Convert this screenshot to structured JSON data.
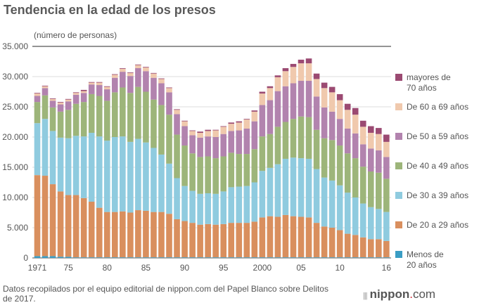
{
  "chart_data": {
    "type": "bar",
    "stacked": true,
    "title": "Tendencia en la edad de los presos",
    "ylabel": "(número de personas)",
    "ylim": [
      0,
      35000
    ],
    "yticks": [
      0,
      5000,
      10000,
      15000,
      20000,
      25000,
      30000,
      35000
    ],
    "ytick_labels": [
      "0",
      "5.000",
      "10.000",
      "15.000",
      "20.000",
      "25.000",
      "30.000",
      "35.000"
    ],
    "xtick_labels": [
      {
        "year": 1971,
        "label": "1971"
      },
      {
        "year": 1975,
        "label": "75"
      },
      {
        "year": 1980,
        "label": "80"
      },
      {
        "year": 1985,
        "label": "85"
      },
      {
        "year": 1990,
        "label": "90"
      },
      {
        "year": 1995,
        "label": "95"
      },
      {
        "year": 2000,
        "label": "2000"
      },
      {
        "year": 2005,
        "label": "05"
      },
      {
        "year": 2010,
        "label": "10"
      },
      {
        "year": 2016,
        "label": "16"
      }
    ],
    "grid": true,
    "legend_position": "right",
    "categories": [
      1971,
      1972,
      1973,
      1974,
      1975,
      1976,
      1977,
      1978,
      1979,
      1980,
      1981,
      1982,
      1983,
      1984,
      1985,
      1986,
      1987,
      1988,
      1989,
      1990,
      1991,
      1992,
      1993,
      1994,
      1995,
      1996,
      1997,
      1998,
      1999,
      2000,
      2001,
      2002,
      2003,
      2004,
      2005,
      2006,
      2007,
      2008,
      2009,
      2010,
      2011,
      2012,
      2013,
      2014,
      2015,
      2016
    ],
    "series": [
      {
        "name": "Menos de 20 años",
        "color": "#3a9dc4",
        "values": [
          300,
          300,
          300,
          200,
          200,
          100,
          100,
          100,
          100,
          100,
          100,
          100,
          100,
          100,
          100,
          100,
          100,
          100,
          100,
          100,
          100,
          100,
          100,
          100,
          100,
          100,
          100,
          100,
          100,
          100,
          100,
          100,
          100,
          100,
          100,
          100,
          100,
          100,
          100,
          100,
          100,
          100,
          100,
          100,
          100,
          100
        ]
      },
      {
        "name": "De 20 a 29 años",
        "color": "#d98f5e",
        "values": [
          13400,
          13300,
          11900,
          10800,
          10200,
          10300,
          9800,
          9200,
          8200,
          7500,
          7500,
          7600,
          7400,
          7800,
          7700,
          7500,
          7500,
          7200,
          6300,
          6000,
          5700,
          5400,
          5500,
          5400,
          5500,
          5700,
          5700,
          5700,
          5900,
          6600,
          6800,
          6700,
          7000,
          6800,
          6700,
          6600,
          5700,
          5100,
          4900,
          4500,
          3900,
          3700,
          3300,
          3000,
          3000,
          2700
        ]
      },
      {
        "name": "De 30 a 39 años",
        "color": "#8fcbdf",
        "values": [
          8600,
          9400,
          8800,
          8900,
          9400,
          9800,
          10200,
          11400,
          11800,
          11800,
          12400,
          12400,
          11700,
          11800,
          11300,
          10600,
          9500,
          8300,
          6800,
          5800,
          5300,
          5100,
          5100,
          5100,
          5400,
          5900,
          6000,
          6100,
          6500,
          7700,
          8000,
          8700,
          9300,
          9700,
          9700,
          9700,
          8900,
          8100,
          7800,
          7400,
          6800,
          6200,
          5600,
          5300,
          5000,
          4800
        ]
      },
      {
        "name": "De 40 a 49 años",
        "color": "#9db57a",
        "values": [
          3500,
          3900,
          3900,
          4300,
          4700,
          5300,
          5700,
          6400,
          6700,
          6600,
          7400,
          8100,
          8100,
          8600,
          8400,
          8000,
          8200,
          8100,
          7200,
          6700,
          6200,
          6100,
          6100,
          5900,
          5800,
          5700,
          5400,
          5300,
          5500,
          5700,
          5600,
          6200,
          6100,
          6400,
          6900,
          6900,
          6500,
          6500,
          6700,
          6600,
          6500,
          6500,
          6100,
          5900,
          6000,
          5500
        ]
      },
      {
        "name": "De 50 a 59 años",
        "color": "#b283ae",
        "values": [
          1000,
          1200,
          1100,
          1200,
          1400,
          1500,
          1500,
          1600,
          1800,
          1900,
          2400,
          2600,
          2800,
          3100,
          3400,
          3600,
          3600,
          3700,
          3400,
          3200,
          3000,
          3200,
          3300,
          3500,
          3700,
          3600,
          3900,
          4200,
          4600,
          5200,
          5600,
          5900,
          5900,
          5900,
          5900,
          6000,
          5500,
          5100,
          4700,
          4400,
          4100,
          4100,
          3700,
          3800,
          3700,
          3600
        ]
      },
      {
        "name": "De 60 a 69 años",
        "color": "#f0c9ad",
        "values": [
          400,
          300,
          300,
          300,
          300,
          300,
          300,
          300,
          400,
          400,
          500,
          500,
          500,
          500,
          600,
          700,
          700,
          700,
          700,
          800,
          700,
          800,
          900,
          1100,
          1200,
          1200,
          1300,
          1500,
          1600,
          1900,
          2000,
          2300,
          2500,
          2700,
          2900,
          2900,
          2900,
          3200,
          3200,
          3100,
          3100,
          3100,
          2900,
          2600,
          2700,
          2500
        ]
      },
      {
        "name": "mayores de 70 años",
        "color": "#9b4a72",
        "values": [
          100,
          100,
          100,
          100,
          100,
          100,
          200,
          100,
          100,
          100,
          100,
          100,
          100,
          100,
          100,
          100,
          100,
          100,
          100,
          100,
          100,
          200,
          200,
          100,
          100,
          200,
          200,
          100,
          200,
          300,
          300,
          300,
          500,
          500,
          600,
          800,
          900,
          900,
          900,
          1000,
          1000,
          1100,
          1000,
          1100,
          1000,
          1200
        ]
      }
    ],
    "legend": [
      {
        "line1": "mayores de",
        "line2": "70 años",
        "color": "#9b4a72"
      },
      {
        "line1": "De 60 a 69 años",
        "line2": "",
        "color": "#f0c9ad"
      },
      {
        "line1": "De 50 a 59 años",
        "line2": "",
        "color": "#b283ae"
      },
      {
        "line1": "De 40 a 49 años",
        "line2": "",
        "color": "#9db57a"
      },
      {
        "line1": "De 30 a 39 años",
        "line2": "",
        "color": "#8fcbdf"
      },
      {
        "line1": "De 20 a 29 años",
        "line2": "",
        "color": "#d98f5e"
      },
      {
        "line1": "Menos de",
        "line2": "20 años",
        "color": "#3a9dc4"
      }
    ]
  },
  "footer": {
    "source": "Datos recopilados por el equipo editorial de nippon.com del Papel Blanco sobre Delitos de 2017.",
    "logo_text": "nippon.com"
  }
}
